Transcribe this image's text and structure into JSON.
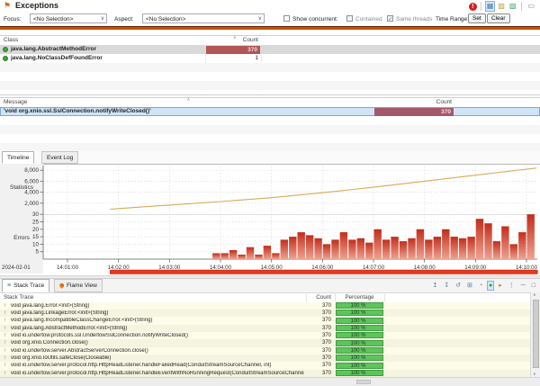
{
  "header": {
    "title": "Exceptions",
    "error_badge": "!",
    "toolbar_icons": [
      {
        "name": "chart-view-icon",
        "glyph": "▦",
        "color": "#4a7fb5",
        "selected": true
      },
      {
        "name": "lane-view-icon",
        "glyph": "▨",
        "color": "#c59a30",
        "selected": false
      },
      {
        "name": "flame-view-icon",
        "glyph": "▧",
        "color": "#3f9f6f",
        "selected": false
      }
    ],
    "collapse_glyph": "▭"
  },
  "controls": {
    "focus_label": "Focus:",
    "focus_value": "<No Selection>",
    "aspect_label": "Aspect:",
    "aspect_value": "<No Selection>",
    "show_concurrent_label": "Show concurrent:",
    "show_concurrent_checked": false,
    "contained_label": "Contained",
    "contained_checked": false,
    "same_threads_label": "Same threads",
    "same_threads_checked": true,
    "time_range_label": "Time Range:",
    "set_button": "Set",
    "clear_button": "Clear"
  },
  "class_table": {
    "columns": [
      "Class",
      "Count"
    ],
    "sort_indicator": {
      "column": "Count",
      "glyph": "∨"
    },
    "rows": [
      {
        "label": "java.lang.AbstractMethodError",
        "count": "370",
        "selected": true,
        "bar": true
      },
      {
        "label": "java.lang.NoClassDefFoundError",
        "count": "1",
        "selected": false,
        "bar": false
      }
    ]
  },
  "message_table": {
    "columns": [
      "Message",
      "Count"
    ],
    "sort_indicator": {
      "column": "Message",
      "glyph": "∧"
    },
    "rows": [
      {
        "label": "'void org.xnio.ssl.SslConnection.notifyWriteClosed()'",
        "count": "370",
        "selected": true,
        "bar": true
      }
    ]
  },
  "timeline_tabs": [
    {
      "label": "Timeline",
      "active": true
    },
    {
      "label": "Event Log",
      "active": false
    }
  ],
  "chart_data": [
    {
      "type": "line",
      "title": "Statistics",
      "ylabel": "Statistics",
      "yticks": [
        2000,
        4000,
        6000,
        8000
      ],
      "ytick_labels": [
        "2,000",
        "4,000",
        "6,000",
        "8,000"
      ],
      "ylim": [
        0,
        9000
      ],
      "legend": "none",
      "grid": true,
      "line_color": "#d5ab55",
      "points": [
        {
          "t": "14:01:50",
          "v": 900
        },
        {
          "t": "14:02:30",
          "v": 1350
        },
        {
          "t": "14:03:00",
          "v": 1650
        },
        {
          "t": "14:04:00",
          "v": 2300
        },
        {
          "t": "14:05:00",
          "v": 3000
        },
        {
          "t": "14:06:00",
          "v": 3900
        },
        {
          "t": "14:07:00",
          "v": 4900
        },
        {
          "t": "14:08:00",
          "v": 6000
        },
        {
          "t": "14:09:00",
          "v": 7100
        },
        {
          "t": "14:10:00",
          "v": 8200
        },
        {
          "t": "14:10:12",
          "v": 8400
        }
      ]
    },
    {
      "type": "bar",
      "title": "Errors",
      "ylabel": "Errors",
      "yticks": [
        5,
        10,
        15,
        20,
        25,
        30
      ],
      "ylim": [
        0,
        33
      ],
      "grid": true,
      "bucket_seconds": 10,
      "start": "14:03:50",
      "values": [
        4,
        4,
        6,
        3,
        8,
        3,
        9,
        4,
        13,
        15,
        18,
        16,
        14,
        10,
        13,
        18,
        13,
        14,
        11,
        20,
        13,
        15,
        12,
        14,
        20,
        13,
        15,
        20,
        15,
        14,
        15,
        27,
        24,
        12,
        22,
        10,
        18,
        30
      ],
      "bar_top_color": "#c22d1c",
      "bar_bottom_color": "#efa28f"
    }
  ],
  "x_axis": {
    "date_label": "2024-02-01",
    "tick_labels": [
      "14:01:00",
      "14:02:00",
      "14:03:00",
      "14:04:00",
      "14:05:00",
      "14:06:00",
      "14:07:00",
      "14:08:00",
      "14:09:00",
      "14:10:00"
    ],
    "range_start": "14:01:50",
    "range_end": "14:10:13",
    "range_color": "#e6391c"
  },
  "stack_pane": {
    "tabs": [
      {
        "label": "Stack Trace",
        "active": true
      },
      {
        "label": "Flame View",
        "active": false
      }
    ],
    "columns": [
      "Stack Trace",
      "Count",
      "Percentage"
    ],
    "toolbar_icons": [
      {
        "name": "collapse-frames-icon",
        "glyph": "↥",
        "color": "#5a7a9a",
        "selected": false
      },
      {
        "name": "expand-frames-icon",
        "glyph": "↧",
        "color": "#5a7a9a",
        "selected": false
      },
      {
        "name": "reset-frames-icon",
        "glyph": "↺",
        "color": "#5a7a9a",
        "selected": false
      },
      {
        "name": "tree-view-icon",
        "glyph": "⊞",
        "color": "#5a7a9a",
        "selected": false
      },
      {
        "name": "clock-icon",
        "glyph": "◔",
        "color": "#b06a28",
        "selected": false
      },
      {
        "name": "group-by-package-icon",
        "glyph": "●",
        "color": "#2ea02e",
        "selected": true
      },
      {
        "name": "group-by-method-icon",
        "glyph": "▸",
        "color": "#d07a28",
        "selected": false
      },
      {
        "name": "view-menu-icon",
        "glyph": "⋮",
        "color": "#666666",
        "selected": false
      },
      {
        "name": "minimize-icon",
        "glyph": "─",
        "color": "#666666",
        "selected": false
      },
      {
        "name": "maximize-icon",
        "glyph": "□",
        "color": "#666666",
        "selected": false
      }
    ],
    "rows": [
      {
        "frame": "void java.lang.Error.<init>(String)",
        "count": "370",
        "percentage": "100 %"
      },
      {
        "frame": "void java.lang.LinkageError.<init>(String)",
        "count": "370",
        "percentage": "100 %"
      },
      {
        "frame": "void java.lang.IncompatibleClassChangeError.<init>(String)",
        "count": "370",
        "percentage": "100 %"
      },
      {
        "frame": "void java.lang.AbstractMethodError.<init>(String)",
        "count": "370",
        "percentage": "100 %"
      },
      {
        "frame": "void io.undertow.protocols.ssl.UndertowSslConnection.notifyWriteClosed()",
        "count": "370",
        "percentage": "100 %"
      },
      {
        "frame": "void org.xnio.Connection.close()",
        "count": "370",
        "percentage": "100 %"
      },
      {
        "frame": "void io.undertow.server.AbstractServerConnection.close()",
        "count": "370",
        "percentage": "100 %"
      },
      {
        "frame": "void org.xnio.IoUtils.safeClose(Closeable)",
        "count": "370",
        "percentage": "100 %"
      },
      {
        "frame": "void io.undertow.server.protocol.http.HttpReadListener.handleFailedRead(ConduitStreamSourceChannel, int)",
        "count": "370",
        "percentage": "100 %"
      },
      {
        "frame": "void io.undertow.server.protocol.http.HttpReadListener.handleEventWithNoRunningRequest(ConduitStreamSourceChannel)",
        "count": "370",
        "percentage": "100 %"
      }
    ]
  },
  "colors": {
    "count_bar_class": "#b15557",
    "count_bar_message": "#a4586c",
    "selection_gray": "#d9d9d9",
    "selection_blue": "#cfe4f7",
    "green_bar": "#5ec45e",
    "range_bar": "#e6391c",
    "rule_orange": "#c05200"
  }
}
